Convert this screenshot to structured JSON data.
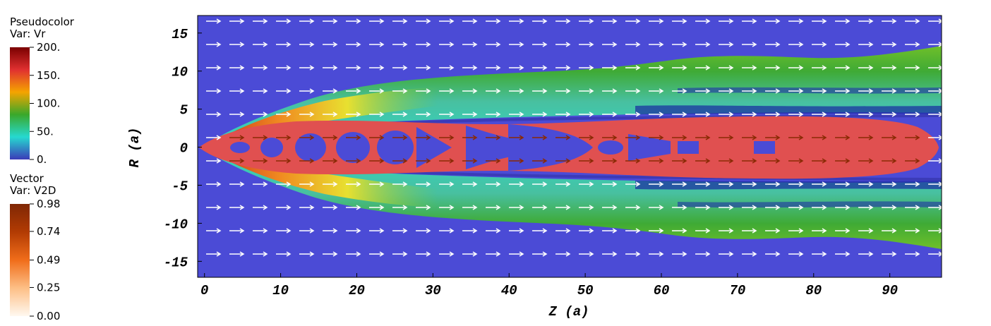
{
  "chart_data": {
    "type": "pseudocolor",
    "xlabel": "Z (a)",
    "ylabel": "R (a)",
    "xlim": [
      -0.9,
      96.8
    ],
    "ylim": [
      -17.1,
      17.3
    ],
    "xticks": [
      0,
      10,
      20,
      30,
      40,
      50,
      60,
      70,
      80,
      90
    ],
    "yticks": [
      -15,
      -10,
      -5,
      0,
      5,
      10,
      15
    ],
    "colorbars": [
      {
        "title": "Pseudocolor",
        "var": "Var: Vr",
        "lim": [
          0,
          200
        ],
        "colors": [
          "#3b3bb8",
          "#26d9d0",
          "#3aa82a",
          "#f5a400",
          "#e03030",
          "#7a0000"
        ],
        "ticks": [
          {
            "value": 200,
            "label": "200."
          },
          {
            "value": 150,
            "label": "150."
          },
          {
            "value": 100,
            "label": "100."
          },
          {
            "value": 50,
            "label": "50."
          },
          {
            "value": 0,
            "label": "0."
          }
        ]
      },
      {
        "title": "Vector",
        "var": "Var: V2D",
        "lim": [
          0,
          0.98
        ],
        "colors": [
          "#fff8f0",
          "#fdbf86",
          "#f06d1a",
          "#b23b03",
          "#7f2704"
        ],
        "ticks": [
          0.98,
          0.74,
          0.49,
          0.25,
          {
            "value": 0,
            "label": "0.00"
          }
        ]
      }
    ]
  }
}
